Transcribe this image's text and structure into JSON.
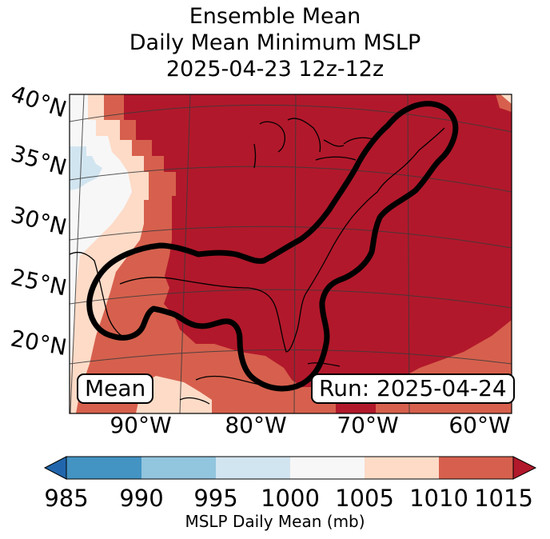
{
  "title": {
    "line1": "Ensemble Mean",
    "line2": "Daily Mean Minimum MSLP",
    "line3": "2025-04-23 12z-12z"
  },
  "map": {
    "lat_labels": [
      "40°N",
      "35°N",
      "30°N",
      "25°N",
      "20°N"
    ],
    "lon_labels": [
      "90°W",
      "80°W",
      "70°W",
      "60°W"
    ],
    "mean_label": "Mean",
    "run_label": "Run: 2025-04-24"
  },
  "colorbar": {
    "label": "MSLP Daily Mean (mb)",
    "ticks": [
      "985",
      "990",
      "995",
      "1000",
      "1005",
      "1010",
      "1015"
    ],
    "bins": [
      {
        "range": "<985",
        "color": "#2166ac"
      },
      {
        "range": "985-990",
        "color": "#4393c3"
      },
      {
        "range": "990-995",
        "color": "#92c5de"
      },
      {
        "range": "995-1000",
        "color": "#d1e5f0"
      },
      {
        "range": "1000-1005",
        "color": "#f7f7f7"
      },
      {
        "range": "1005-1010",
        "color": "#fddbc7"
      },
      {
        "range": "1010-1015",
        "color": "#d6604d"
      },
      {
        "range": ">1015",
        "color": "#b2182b"
      }
    ]
  }
}
